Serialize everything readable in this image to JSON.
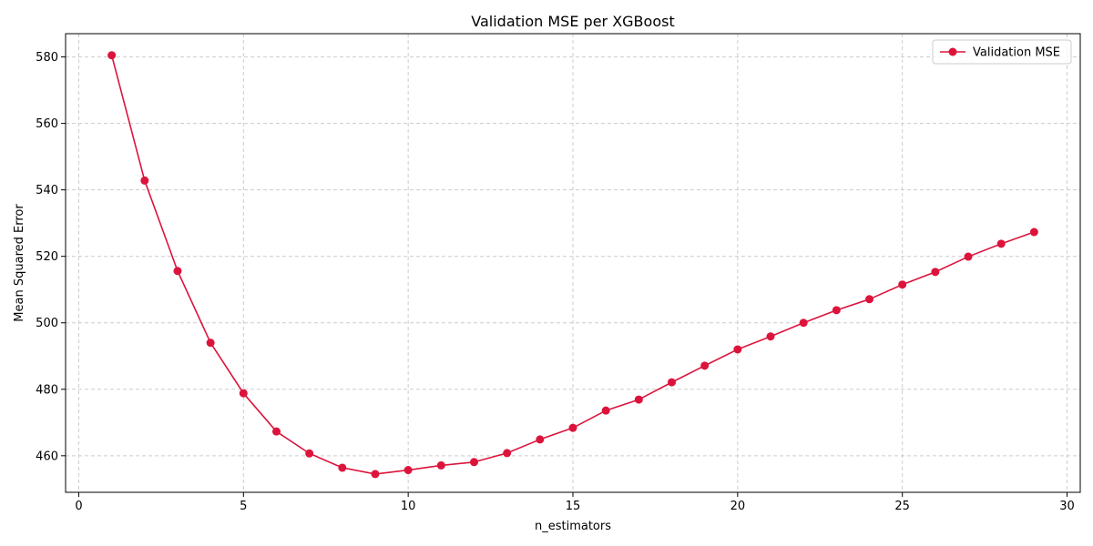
{
  "chart_data": {
    "type": "line",
    "title": "Validation MSE per XGBoost",
    "xlabel": "n_estimators",
    "ylabel": "Mean Squared Error",
    "xlim": [
      -0.4,
      30.4
    ],
    "ylim": [
      449,
      587
    ],
    "xticks": [
      0,
      5,
      10,
      15,
      20,
      25,
      30
    ],
    "yticks": [
      460,
      480,
      500,
      520,
      540,
      560,
      580
    ],
    "grid": true,
    "legend_position": "top-right",
    "series": [
      {
        "name": "Validation MSE",
        "color": "#dc143c",
        "marker": "circle",
        "x": [
          1,
          2,
          3,
          4,
          5,
          6,
          7,
          8,
          9,
          10,
          11,
          12,
          13,
          14,
          15,
          16,
          17,
          18,
          19,
          20,
          21,
          22,
          23,
          24,
          25,
          26,
          27,
          28,
          29
        ],
        "y": [
          580.5,
          542.8,
          515.6,
          494.0,
          478.8,
          467.3,
          460.7,
          456.4,
          454.5,
          455.7,
          457.1,
          458.1,
          460.8,
          464.9,
          468.4,
          473.6,
          476.9,
          482.1,
          487.1,
          492.0,
          495.9,
          500.0,
          503.8,
          507.1,
          511.5,
          515.3,
          519.9,
          523.8,
          527.3
        ]
      }
    ]
  }
}
